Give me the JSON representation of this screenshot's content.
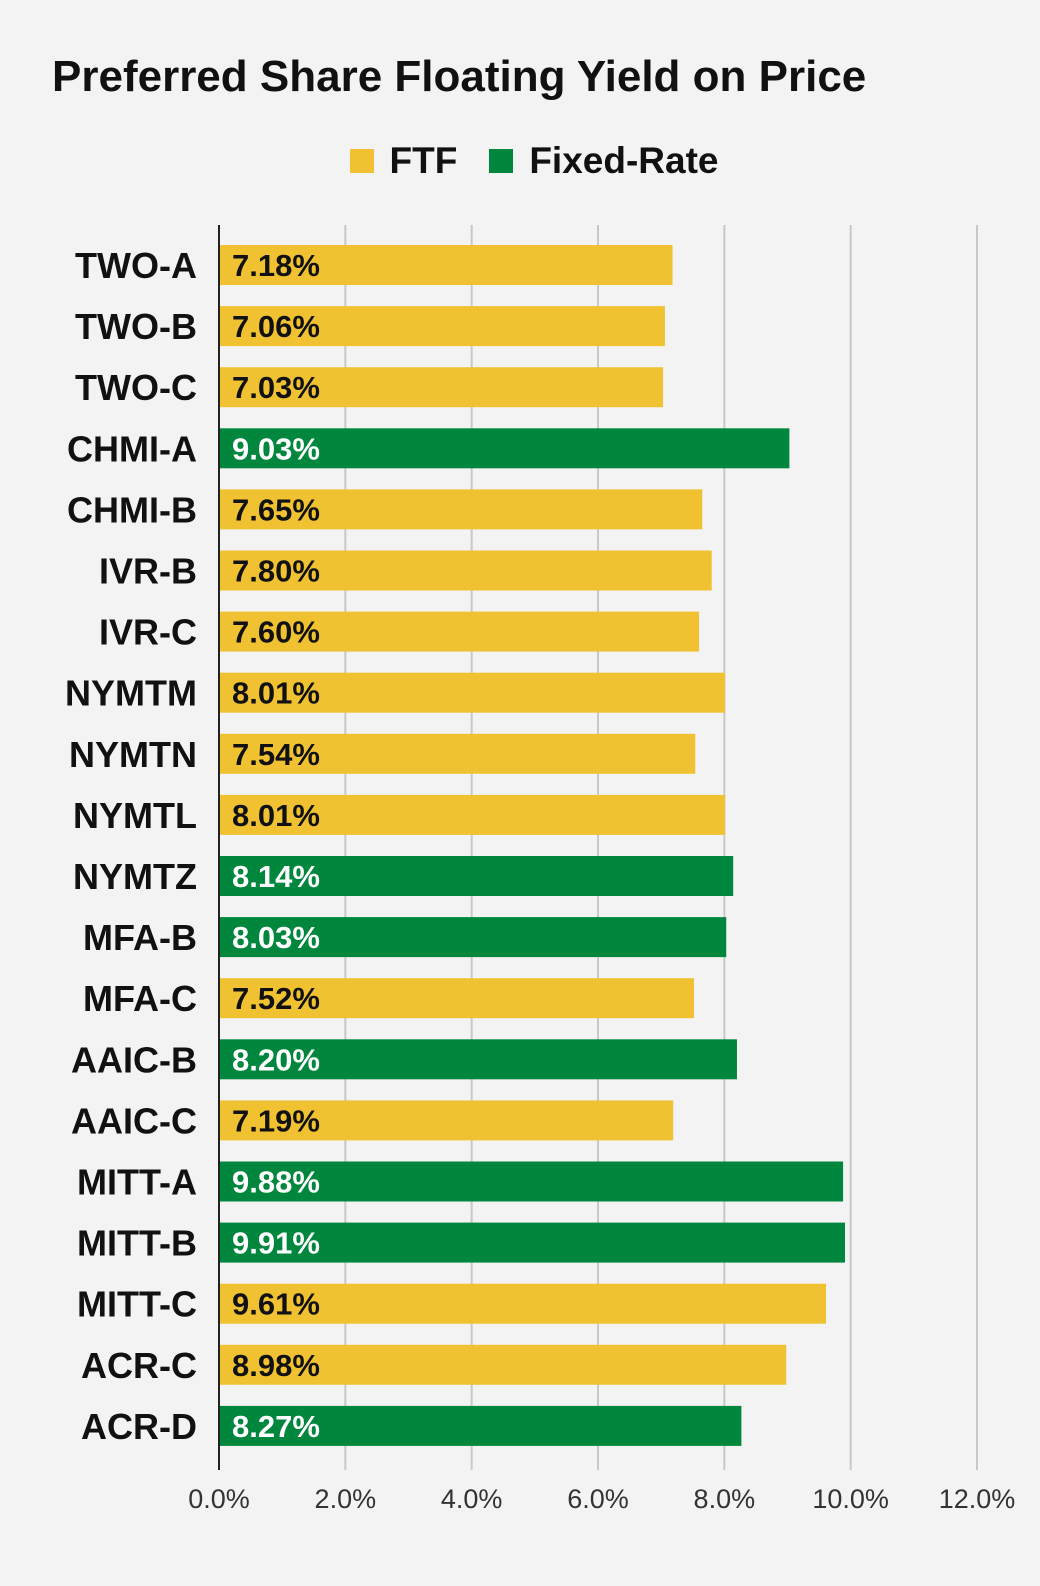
{
  "chart_data": {
    "type": "bar",
    "orientation": "horizontal",
    "title": "Preferred Share Floating Yield on Price",
    "legend": [
      {
        "name": "FTF",
        "color": "#f0c232"
      },
      {
        "name": "Fixed-Rate",
        "color": "#00873d"
      }
    ],
    "categories": [
      "TWO-A",
      "TWO-B",
      "TWO-C",
      "CHMI-A",
      "CHMI-B",
      "IVR-B",
      "IVR-C",
      "NYMTM",
      "NYMTN",
      "NYMTL",
      "NYMTZ",
      "MFA-B",
      "MFA-C",
      "AAIC-B",
      "AAIC-C",
      "MITT-A",
      "MITT-B",
      "MITT-C",
      "ACR-C",
      "ACR-D"
    ],
    "values": [
      7.18,
      7.06,
      7.03,
      9.03,
      7.65,
      7.8,
      7.6,
      8.01,
      7.54,
      8.01,
      8.14,
      8.03,
      7.52,
      8.2,
      7.19,
      9.88,
      9.91,
      9.61,
      8.98,
      8.27
    ],
    "value_labels": [
      "7.18%",
      "7.06%",
      "7.03%",
      "9.03%",
      "7.65%",
      "7.80%",
      "7.60%",
      "8.01%",
      "7.54%",
      "8.01%",
      "8.14%",
      "8.03%",
      "7.52%",
      "8.20%",
      "7.19%",
      "9.88%",
      "9.91%",
      "9.61%",
      "8.98%",
      "8.27%"
    ],
    "series_type": [
      "FTF",
      "FTF",
      "FTF",
      "Fixed-Rate",
      "FTF",
      "FTF",
      "FTF",
      "FTF",
      "FTF",
      "FTF",
      "Fixed-Rate",
      "Fixed-Rate",
      "FTF",
      "Fixed-Rate",
      "FTF",
      "Fixed-Rate",
      "Fixed-Rate",
      "FTF",
      "FTF",
      "Fixed-Rate"
    ],
    "xlim": [
      0,
      12
    ],
    "xticks": [
      0,
      2,
      4,
      6,
      8,
      10,
      12
    ],
    "xtick_labels": [
      "0.0%",
      "2.0%",
      "4.0%",
      "6.0%",
      "8.0%",
      "10.0%",
      "12.0%"
    ],
    "grid": true,
    "legend_position": "top",
    "colors": {
      "FTF": "#f0c232",
      "Fixed-Rate": "#00873d",
      "label_on_FTF": "#111111",
      "label_on_Fixed-Rate": "#ffffff",
      "grid": "#c8c8c8",
      "axis": "#222222"
    }
  }
}
